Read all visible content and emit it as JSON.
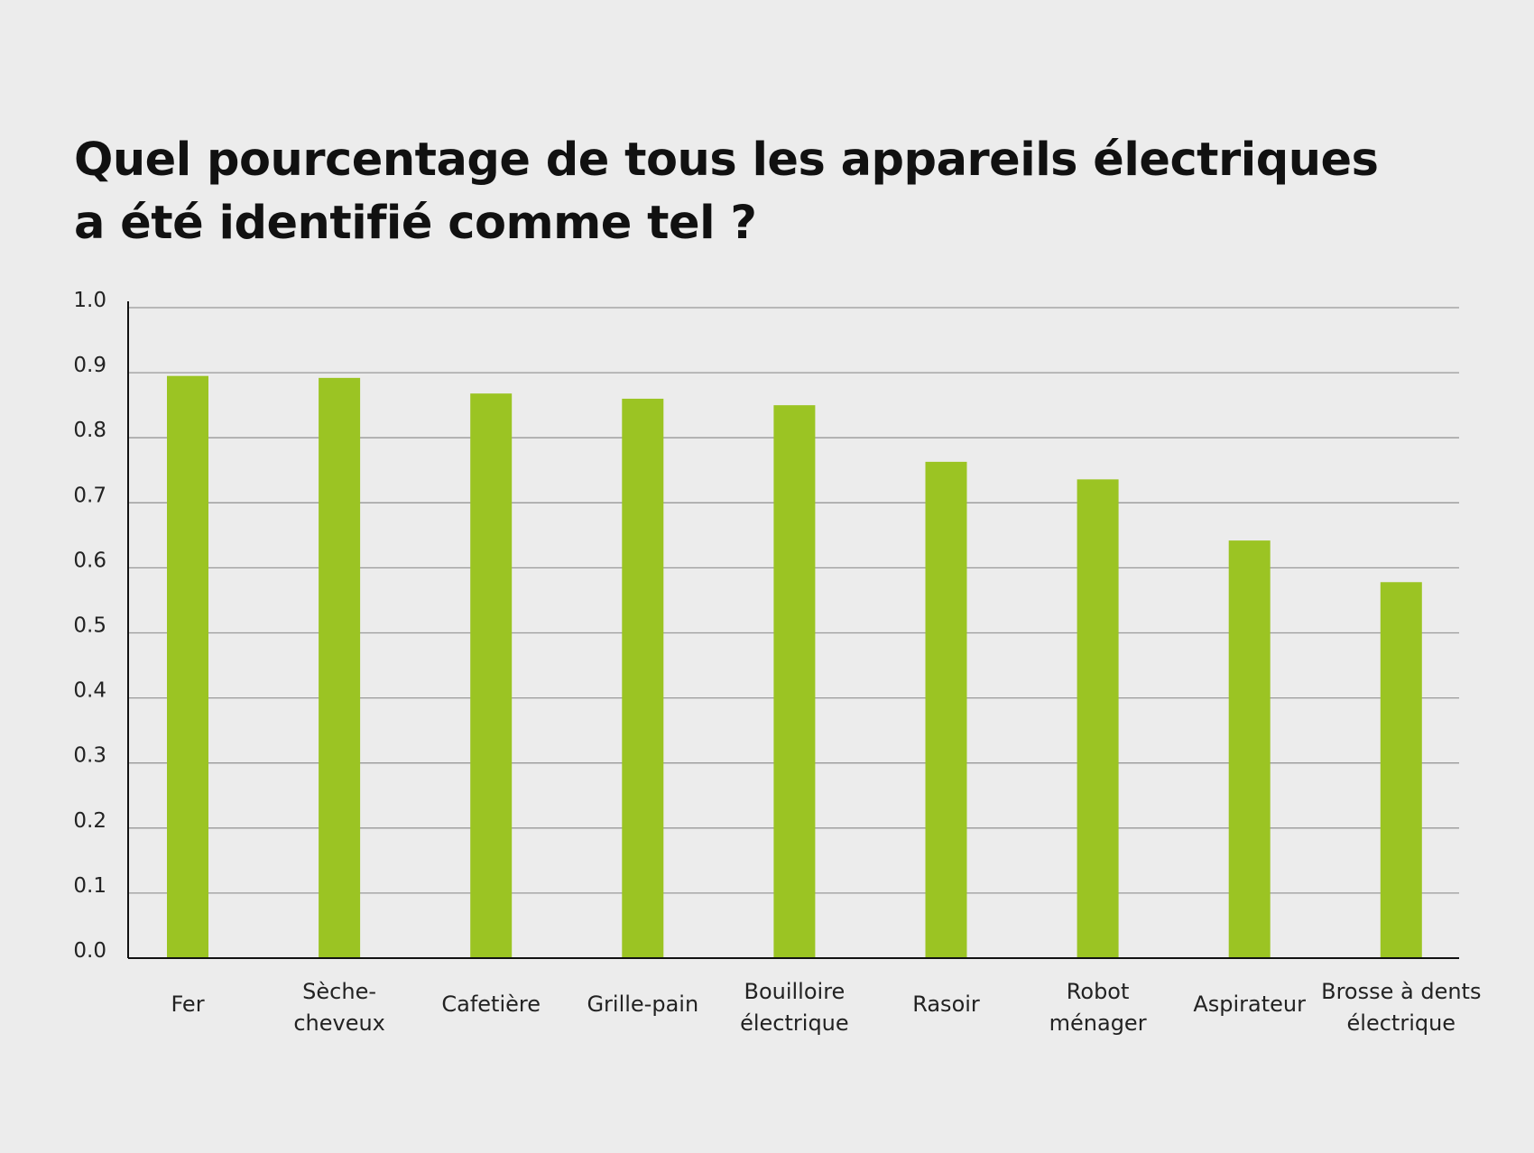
{
  "title_lines": [
    "Quel pourcentage de tous les appareils électriques",
    "a été identifié comme tel ?"
  ],
  "colors": {
    "background": "#ececec",
    "bar": "#9bc423",
    "grid": "#999999",
    "axis": "#111111",
    "text": "#222222"
  },
  "chart_data": {
    "type": "bar",
    "categories": [
      "Fer",
      "Sèche-cheveux",
      "Cafetière",
      "Grille-pain",
      "Bouilloire électrique",
      "Rasoir",
      "Robot ménager",
      "Aspirateur",
      "Brosse à dents électrique"
    ],
    "category_label_lines": [
      [
        "Fer"
      ],
      [
        "Sèche-",
        "cheveux"
      ],
      [
        "Cafetière"
      ],
      [
        "Grille-pain"
      ],
      [
        "Bouilloire",
        "électrique"
      ],
      [
        "Rasoir"
      ],
      [
        "Robot",
        "ménager"
      ],
      [
        "Aspirateur"
      ],
      [
        "Brosse à dents",
        "électrique"
      ]
    ],
    "values": [
      0.895,
      0.892,
      0.868,
      0.86,
      0.85,
      0.763,
      0.736,
      0.642,
      0.578
    ],
    "ylim": [
      0,
      1
    ],
    "yticks": [
      "0.0",
      "0.1",
      "0.2",
      "0.3",
      "0.4",
      "0.5",
      "0.6",
      "0.7",
      "0.8",
      "0.9",
      "1.0"
    ],
    "grid": true,
    "legend": "none",
    "xlabel": "",
    "ylabel": ""
  }
}
